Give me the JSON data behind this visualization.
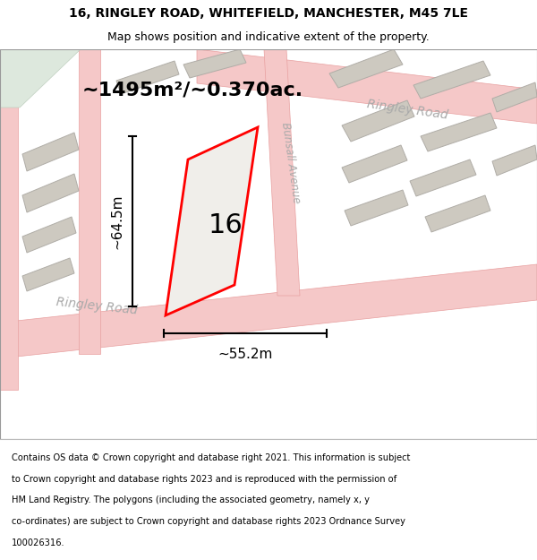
{
  "title_line1": "16, RINGLEY ROAD, WHITEFIELD, MANCHESTER, M45 7LE",
  "title_line2": "Map shows position and indicative extent of the property.",
  "area_text": "~1495m²/~0.370ac.",
  "number_label": "16",
  "width_label": "~55.2m",
  "height_label": "~64.5m",
  "road_label_1": "Ringley Road",
  "road_label_2": "Ringley Road",
  "road_label_3": "Bunsall Avenue",
  "footer_lines": [
    "Contains OS data © Crown copyright and database right 2021. This information is subject",
    "to Crown copyright and database rights 2023 and is reproduced with the permission of",
    "HM Land Registry. The polygons (including the associated geometry, namely x, y",
    "co-ordinates) are subject to Crown copyright and database rights 2023 Ordnance Survey",
    "100026316."
  ],
  "map_bg": "#ede9e0",
  "road_color": "#f5c8c8",
  "road_border_color": "#e8a0a0",
  "building_color": "#cdc9c0",
  "building_border": "#b0ada7",
  "green_color": "#dde8dd",
  "property_color": "#f0eeea",
  "property_border": "#ff0000",
  "title_bg": "#ffffff",
  "footer_bg": "#ffffff"
}
